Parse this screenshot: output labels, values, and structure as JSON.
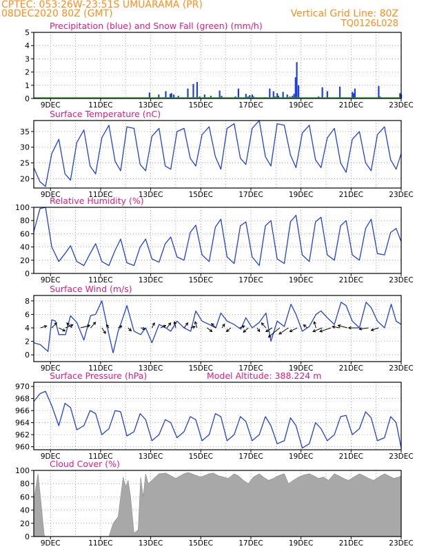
{
  "header": {
    "line1": "CPTEC:   053:26W-23:51S   UMUARAMA (PR)",
    "date": "08DEC2020 80Z (GMT)",
    "grid_line": "Vertical Grid Line: 80Z",
    "code": "TQ0126L028"
  },
  "colors": {
    "title": "#e8177a",
    "header": "#ff8c1a",
    "blue": "#1f3fe0",
    "green": "#1fae1f",
    "cloud": "#a8a8a8",
    "wind_arrow": "#000000"
  },
  "x_ticks": [
    "9DEC",
    "11DEC",
    "13DEC",
    "15DEC",
    "17DEC",
    "19DEC",
    "21DEC",
    "23DEC"
  ],
  "model_altitude": "Model Altitude: 388.224 m",
  "chart_data": [
    {
      "id": "precip",
      "type": "bar",
      "title": "Precipitation (blue) and Snow Fall (green) (mm/h)",
      "ylim": [
        0,
        5
      ],
      "yticks": [
        "0",
        "1",
        "2",
        "3",
        "4",
        "5"
      ],
      "xlim": [
        8.333,
        23.0
      ],
      "series": [
        {
          "color": "blue",
          "x": [
            12.95,
            13.32,
            13.6,
            13.78,
            13.83,
            13.92,
            14.1,
            14.48,
            14.7,
            14.85,
            14.95,
            15.15,
            15.4,
            15.75,
            15.83,
            16.38,
            16.5,
            16.8,
            16.88,
            16.95,
            17.05,
            17.1,
            17.55,
            17.75,
            17.9,
            17.97,
            18.05,
            18.1,
            18.28,
            18.45,
            18.55,
            18.65,
            18.72,
            18.78,
            18.83,
            18.9,
            19.7,
            19.85,
            20.05,
            20.55,
            21.05,
            21.1,
            21.15,
            22.1,
            22.15,
            22.95,
            23.0
          ],
          "values": [
            0.45,
            0.3,
            0.55,
            0.35,
            0.4,
            0.3,
            0.2,
            0.75,
            1.1,
            1.25,
            0.15,
            0.3,
            0.2,
            0.6,
            0.2,
            0.15,
            0.75,
            0.35,
            0.15,
            0.25,
            0.3,
            0.15,
            0.1,
            0.75,
            0.55,
            0.15,
            0.4,
            0.2,
            0.5,
            0.3,
            0.15,
            0.2,
            0.35,
            1.6,
            2.75,
            1.0,
            0.15,
            0.85,
            0.55,
            0.9,
            0.5,
            0.4,
            0.75,
            0.95,
            0.15,
            0.4,
            0.3
          ]
        },
        {
          "color": "green",
          "x": [
            8.333,
            23.0
          ],
          "values": [
            0,
            0
          ]
        }
      ]
    },
    {
      "id": "temp",
      "type": "line",
      "title": "Surface Temperature (nC)",
      "ylim": [
        17,
        38.5
      ],
      "yticks": [
        "20",
        "25",
        "30",
        "35"
      ],
      "xlim": [
        8.333,
        23.0
      ],
      "series": [
        {
          "color": "blue",
          "x": [
            8.333,
            8.58,
            8.8,
            9.05,
            9.333,
            9.58,
            9.8,
            10.05,
            10.333,
            10.58,
            10.8,
            11.05,
            11.333,
            11.58,
            11.8,
            12.05,
            12.333,
            12.58,
            12.8,
            13.05,
            13.333,
            13.58,
            13.8,
            14.05,
            14.333,
            14.58,
            14.8,
            15.05,
            15.333,
            15.58,
            15.8,
            16.05,
            16.333,
            16.58,
            16.8,
            17.05,
            17.333,
            17.58,
            17.8,
            18.05,
            18.333,
            18.58,
            18.8,
            19.05,
            19.333,
            19.58,
            19.8,
            20.05,
            20.333,
            20.58,
            20.8,
            21.05,
            21.333,
            21.58,
            21.8,
            22.05,
            22.333,
            22.58,
            22.8,
            23.0
          ],
          "values": [
            23.5,
            19.0,
            17.5,
            28.0,
            32.5,
            21.5,
            19.5,
            31.5,
            35.5,
            24.0,
            21.5,
            33.0,
            37.0,
            25.5,
            22.5,
            36.5,
            36.0,
            24.5,
            22.5,
            33.5,
            36.0,
            24.0,
            23.0,
            35.0,
            36.0,
            26.5,
            24.0,
            34.0,
            36.5,
            27.0,
            23.0,
            36.0,
            37.5,
            26.5,
            24.5,
            36.0,
            38.5,
            27.0,
            24.0,
            37.5,
            37.0,
            27.5,
            23.5,
            34.5,
            37.0,
            26.0,
            23.5,
            33.0,
            36.0,
            25.0,
            22.0,
            32.5,
            35.0,
            25.0,
            22.5,
            34.0,
            36.5,
            26.0,
            23.0,
            28.0
          ]
        }
      ]
    },
    {
      "id": "rh",
      "type": "line",
      "title": "Relative Humidity (%)",
      "ylim": [
        0,
        100
      ],
      "yticks": [
        "0",
        "20",
        "40",
        "60",
        "80",
        "100"
      ],
      "xlim": [
        8.333,
        23.0
      ],
      "series": [
        {
          "color": "blue",
          "x": [
            8.333,
            8.58,
            8.8,
            9.05,
            9.333,
            9.58,
            9.8,
            10.05,
            10.333,
            10.58,
            10.8,
            11.05,
            11.333,
            11.58,
            11.8,
            12.05,
            12.333,
            12.58,
            12.8,
            13.05,
            13.333,
            13.58,
            13.8,
            14.05,
            14.333,
            14.58,
            14.8,
            15.05,
            15.333,
            15.58,
            15.8,
            16.05,
            16.333,
            16.58,
            16.8,
            17.05,
            17.333,
            17.58,
            17.8,
            18.05,
            18.333,
            18.58,
            18.8,
            19.05,
            19.333,
            19.58,
            19.8,
            20.05,
            20.333,
            20.58,
            20.8,
            21.05,
            21.333,
            21.58,
            21.8,
            22.05,
            22.333,
            22.58,
            22.8,
            23.0
          ],
          "values": [
            63.0,
            98.0,
            100.0,
            40.0,
            18.0,
            30.0,
            42.0,
            18.0,
            12.0,
            30.0,
            45.0,
            18.0,
            12.0,
            35.0,
            52.0,
            16.0,
            12.0,
            40.0,
            52.0,
            22.0,
            17.0,
            45.0,
            55.0,
            25.0,
            20.0,
            62.0,
            73.0,
            28.0,
            18.0,
            70.0,
            82.0,
            25.0,
            15.0,
            72.0,
            78.0,
            25.0,
            12.0,
            72.0,
            80.0,
            22.0,
            15.0,
            78.0,
            88.0,
            28.0,
            18.0,
            78.0,
            85.0,
            28.0,
            20.0,
            72.0,
            80.0,
            28.0,
            20.0,
            68.0,
            82.0,
            30.0,
            28.0,
            62.0,
            68.0,
            48.0
          ]
        }
      ]
    },
    {
      "id": "wind",
      "type": "line",
      "title": "Surface Wind (m/s)",
      "ylim": [
        -1,
        8.8
      ],
      "yticks": [
        "0",
        "2",
        "4",
        "6",
        "8"
      ],
      "xlim": [
        8.333,
        23.0
      ],
      "series": [
        {
          "color": "blue",
          "x": [
            8.333,
            8.6,
            8.9,
            9.05,
            9.2,
            9.333,
            9.6,
            9.8,
            10.05,
            10.333,
            10.6,
            10.8,
            11.05,
            11.333,
            11.5,
            11.7,
            11.8,
            12.05,
            12.333,
            12.6,
            12.8,
            13.05,
            13.333,
            13.6,
            13.8,
            14.05,
            14.333,
            14.6,
            14.8,
            15.05,
            15.333,
            15.6,
            15.8,
            16.05,
            16.333,
            16.6,
            16.8,
            17.05,
            17.333,
            17.6,
            17.8,
            18.05,
            18.333,
            18.6,
            18.8,
            19.05,
            19.333,
            19.6,
            19.8,
            20.05,
            20.333,
            20.6,
            20.8,
            21.05,
            21.333,
            21.6,
            21.8,
            22.05,
            22.333,
            22.6,
            22.8,
            23.0
          ],
          "values": [
            1.8,
            1.5,
            0.5,
            5.2,
            5.0,
            3.0,
            3.0,
            5.8,
            4.8,
            2.2,
            5.8,
            6.0,
            8.0,
            3.0,
            0.3,
            3.5,
            4.5,
            7.3,
            3.5,
            3.0,
            4.0,
            1.8,
            4.5,
            4.0,
            3.5,
            5.0,
            4.0,
            3.5,
            6.5,
            5.0,
            4.5,
            4.0,
            6.2,
            5.0,
            4.5,
            3.8,
            5.5,
            4.0,
            4.8,
            6.2,
            2.0,
            5.0,
            4.2,
            7.5,
            6.0,
            3.5,
            4.2,
            6.0,
            6.5,
            5.5,
            4.5,
            7.8,
            7.3,
            5.0,
            4.0,
            7.8,
            7.0,
            5.0,
            4.0,
            7.5,
            5.0,
            4.5
          ]
        }
      ],
      "wind_vectors": {
        "x": [
          8.6,
          9.05,
          9.333,
          9.6,
          9.85,
          10.2,
          10.6,
          11.05,
          11.333,
          11.7,
          12.1,
          12.6,
          13.05,
          13.4,
          13.65,
          14.0,
          14.333,
          14.6,
          14.85,
          15.25,
          15.6,
          15.85,
          16.2,
          16.55,
          16.9,
          17.25,
          17.6,
          17.85,
          18.15,
          18.5,
          18.85,
          19.25,
          19.6,
          19.85,
          20.2,
          20.55,
          20.85,
          21.3,
          21.7,
          22.1
        ],
        "u": [
          1.0,
          0.8,
          1.0,
          1.2,
          -0.8,
          1.5,
          0.8,
          0.6,
          -0.4,
          0.6,
          0.5,
          0.7,
          0.4,
          0.8,
          0.6,
          -0.2,
          0.6,
          0.7,
          -0.3,
          0.8,
          -0.7,
          0.4,
          -0.7,
          0.8,
          -0.8,
          0.4,
          -0.7,
          -1.0,
          -1.8,
          -1.5,
          -1.2,
          -0.6,
          -0.3,
          -1.5,
          -1.8,
          -1.2,
          -1.5,
          -1.6,
          -1.5,
          -1.2
        ],
        "v": [
          0.3,
          0.8,
          -0.5,
          0.5,
          0.8,
          0.4,
          0.9,
          -0.9,
          0.5,
          0.3,
          -0.5,
          -0.2,
          0.8,
          0.4,
          0.8,
          1.0,
          0.8,
          0.2,
          1.0,
          -0.6,
          0.7,
          0.6,
          -0.6,
          0.3,
          -0.7,
          -0.6,
          0.8,
          -0.6,
          -1.5,
          -1.0,
          -0.6,
          0.5,
          1.0,
          -0.6,
          -0.6,
          0.2,
          0.4,
          0.0,
          -0.2,
          -0.4
        ]
      }
    },
    {
      "id": "psfc",
      "type": "line",
      "title": "Surface Pressure (hPa)",
      "ylim": [
        959.5,
        970.7
      ],
      "yticks": [
        "960",
        "962",
        "964",
        "966",
        "968",
        "970"
      ],
      "xlim": [
        8.333,
        23.0
      ],
      "series": [
        {
          "color": "blue",
          "x": [
            8.333,
            8.58,
            8.8,
            9.05,
            9.333,
            9.58,
            9.8,
            10.05,
            10.333,
            10.58,
            10.8,
            11.05,
            11.333,
            11.58,
            11.8,
            12.05,
            12.333,
            12.58,
            12.8,
            13.05,
            13.333,
            13.58,
            13.8,
            14.05,
            14.333,
            14.58,
            14.8,
            15.05,
            15.333,
            15.58,
            15.8,
            16.05,
            16.333,
            16.58,
            16.8,
            17.05,
            17.333,
            17.58,
            17.8,
            18.05,
            18.333,
            18.58,
            18.8,
            19.05,
            19.333,
            19.58,
            19.8,
            20.05,
            20.333,
            20.58,
            20.8,
            21.05,
            21.333,
            21.58,
            21.8,
            22.05,
            22.333,
            22.58,
            22.8,
            23.0
          ],
          "values": [
            967.5,
            968.8,
            969.2,
            966.8,
            963.5,
            967.2,
            966.5,
            962.8,
            963.5,
            966.0,
            965.5,
            962.0,
            963.0,
            966.0,
            965.8,
            961.8,
            962.5,
            965.5,
            964.5,
            961.0,
            962.0,
            964.5,
            964.0,
            961.5,
            962.5,
            965.0,
            964.5,
            961.0,
            962.0,
            965.5,
            965.0,
            961.0,
            962.0,
            965.0,
            964.2,
            961.0,
            962.0,
            965.0,
            963.5,
            960.5,
            961.0,
            964.8,
            963.5,
            959.8,
            960.5,
            964.0,
            963.0,
            961.0,
            962.0,
            965.0,
            965.2,
            962.0,
            963.0,
            965.8,
            964.8,
            961.0,
            961.5,
            965.0,
            964.0,
            959.8
          ]
        }
      ]
    },
    {
      "id": "cloud",
      "type": "area",
      "title": "Cloud Cover (%)",
      "ylim": [
        0,
        100
      ],
      "yticks": [
        "0",
        "20",
        "40",
        "60",
        "80",
        "100"
      ],
      "xlim": [
        8.333,
        23.0
      ],
      "series": [
        {
          "color": "cloud",
          "x": [
            8.333,
            8.5,
            8.6,
            8.75,
            8.8,
            9.0,
            9.333,
            9.8,
            10.333,
            10.8,
            11.05,
            11.333,
            11.5,
            11.7,
            11.9,
            12.0,
            12.1,
            12.2,
            12.333,
            12.5,
            12.6,
            12.7,
            12.8,
            12.9,
            13.05,
            13.333,
            13.6,
            13.8,
            14.0,
            14.333,
            14.5,
            14.7,
            15.0,
            15.333,
            15.5,
            15.7,
            15.9,
            16.1,
            16.333,
            16.5,
            16.7,
            16.9,
            17.1,
            17.333,
            17.5,
            17.7,
            17.9,
            18.1,
            18.333,
            18.5,
            18.7,
            18.9,
            19.1,
            19.333,
            19.5,
            19.7,
            19.9,
            20.1,
            20.333,
            20.5,
            20.7,
            20.9,
            21.1,
            21.333,
            21.5,
            21.7,
            21.9,
            22.1,
            22.333,
            22.5,
            22.7,
            22.9,
            23.0
          ],
          "values": [
            55,
            95,
            60,
            2,
            0,
            0,
            0,
            0,
            0,
            0,
            0,
            0,
            20,
            30,
            90,
            75,
            85,
            60,
            5,
            10,
            90,
            60,
            95,
            80,
            85,
            95,
            96,
            92,
            88,
            95,
            97,
            94,
            90,
            95,
            96,
            92,
            90,
            88,
            95,
            92,
            85,
            80,
            90,
            95,
            90,
            85,
            88,
            92,
            95,
            80,
            85,
            90,
            93,
            95,
            92,
            88,
            90,
            85,
            95,
            92,
            88,
            85,
            90,
            95,
            92,
            88,
            85,
            90,
            95,
            92,
            88,
            90,
            92
          ]
        }
      ]
    }
  ]
}
